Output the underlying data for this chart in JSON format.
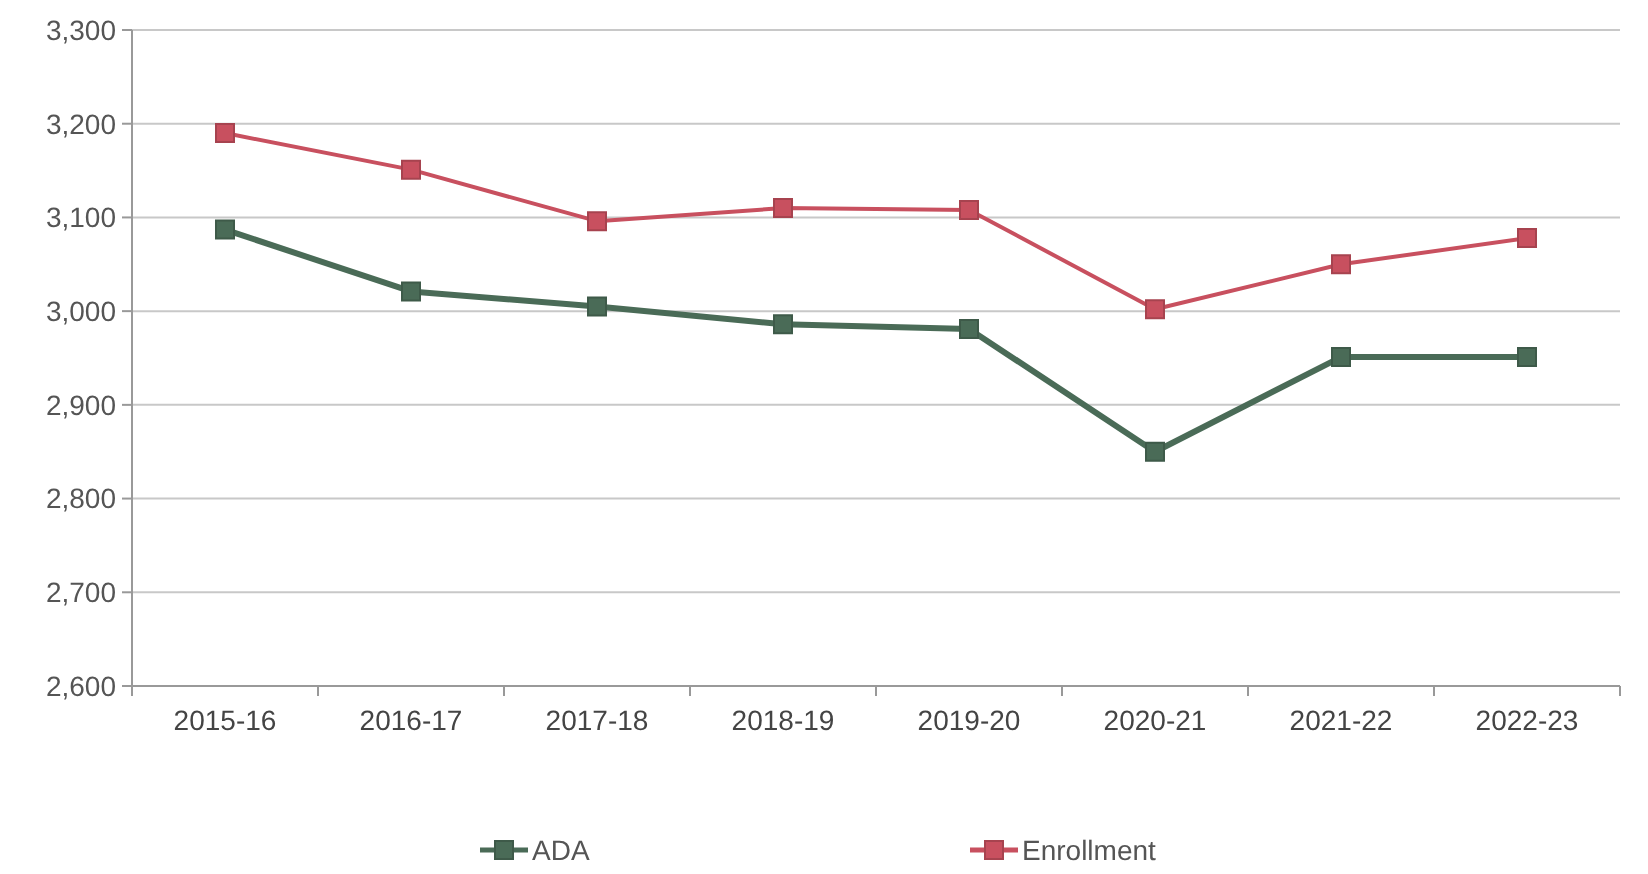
{
  "chart_data": {
    "type": "line",
    "categories": [
      "2015-16",
      "2016-17",
      "2017-18",
      "2018-19",
      "2019-20",
      "2020-21",
      "2021-22",
      "2022-23"
    ],
    "series": [
      {
        "name": "ADA",
        "color": "#4a6b57",
        "values": [
          3087,
          3021,
          3005,
          2986,
          2981,
          2850,
          2951,
          2951
        ]
      },
      {
        "name": "Enrollment",
        "color": "#c8505f",
        "values": [
          3190,
          3151,
          3096,
          3110,
          3108,
          3002,
          3050,
          3078
        ]
      }
    ],
    "ylim": [
      2600,
      3300
    ],
    "yticks": [
      {
        "value": 2600,
        "label": "2,600"
      },
      {
        "value": 2700,
        "label": "2,700"
      },
      {
        "value": 2800,
        "label": "2,800"
      },
      {
        "value": 2900,
        "label": "2,900"
      },
      {
        "value": 3000,
        "label": "3,000"
      },
      {
        "value": 3100,
        "label": "3,100"
      },
      {
        "value": 3200,
        "label": "3,200"
      },
      {
        "value": 3300,
        "label": "3,300"
      }
    ],
    "grid": "y",
    "legend": "bottom",
    "marker": "square",
    "line_style": "solid"
  }
}
